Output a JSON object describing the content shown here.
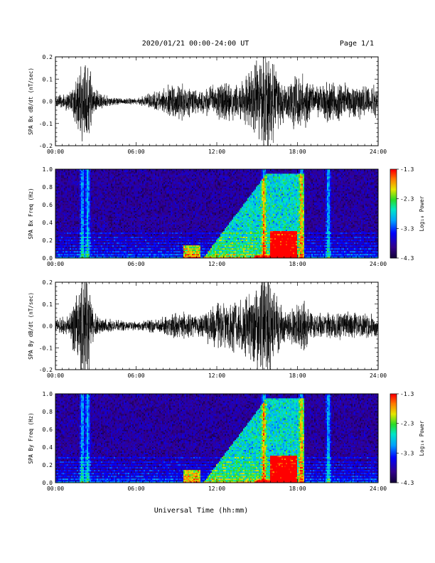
{
  "header": {
    "title": "2020/01/21  00:00-24:00 UT",
    "page": "Page 1/1"
  },
  "xlabel": "Universal Time (hh:mm)",
  "chart_data": [
    {
      "type": "line",
      "ylabel": "SPA Bx dB/dt (nT/sec)",
      "xlim": [
        0,
        24
      ],
      "ylim": [
        -0.2,
        0.2
      ],
      "x_ticks": [
        "00:00",
        "06:00",
        "12:00",
        "18:00",
        "24:00"
      ],
      "y_ticks": [
        "-0.2",
        "-0.1",
        "0.0",
        "0.1",
        "0.2"
      ],
      "y_tick_values": [
        -0.2,
        -0.1,
        0.0,
        0.1,
        0.2
      ],
      "amplitude_envelope": {
        "hours": [
          0,
          1,
          1.7,
          2.0,
          2.4,
          2.8,
          3.5,
          4.5,
          6,
          7.5,
          8.5,
          9.5,
          10.5,
          11.5,
          12.5,
          13.5,
          14.5,
          15.3,
          15.8,
          16.5,
          17.2,
          17.8,
          18.5,
          19.3,
          20,
          21,
          22,
          23,
          24
        ],
        "amplitude": [
          0.03,
          0.05,
          0.15,
          0.22,
          0.25,
          0.07,
          0.035,
          0.02,
          0.015,
          0.05,
          0.08,
          0.09,
          0.06,
          0.08,
          0.1,
          0.1,
          0.14,
          0.26,
          0.3,
          0.15,
          0.08,
          0.16,
          0.14,
          0.07,
          0.1,
          0.1,
          0.09,
          0.08,
          0.08
        ]
      }
    },
    {
      "type": "heatmap",
      "ylabel": "SPA Bx Freq (Hz)",
      "xlim": [
        0,
        24
      ],
      "ylim": [
        0,
        1.0
      ],
      "x_ticks": [
        "00:00",
        "06:00",
        "12:00",
        "18:00",
        "24:00"
      ],
      "y_ticks": [
        "0.0",
        "0.2",
        "0.4",
        "0.6",
        "0.8",
        "1.0"
      ],
      "y_tick_values": [
        0,
        0.2,
        0.4,
        0.6,
        0.8,
        1.0
      ],
      "colorbar": {
        "label": "Log₁₀ Power",
        "ticks": [
          "-1.3",
          "-2.3",
          "-3.3",
          "-4.3"
        ],
        "tick_values": [
          -1.3,
          -2.3,
          -3.3,
          -4.3
        ],
        "range": [
          -4.3,
          -1.3
        ]
      },
      "features": {
        "band_limits_hz": [
          0.22,
          0.3,
          0.6,
          0.95
        ],
        "vertical_streaks_hours": [
          2.0,
          2.4,
          15.5,
          18.3,
          20.3
        ],
        "high_power_regions": [
          {
            "hours": [
              9.5,
              10.8
            ],
            "max_freq_hz": 0.15
          },
          {
            "hours": [
              11,
              18.5
            ],
            "max_freq_hz": 0.95
          },
          {
            "hours": [
              16,
              18
            ],
            "max_freq_hz": 0.3
          }
        ]
      }
    },
    {
      "type": "line",
      "ylabel": "SPA By dB/dt (nT/sec)",
      "xlim": [
        0,
        24
      ],
      "ylim": [
        -0.2,
        0.2
      ],
      "x_ticks": [
        "00:00",
        "06:00",
        "12:00",
        "18:00",
        "24:00"
      ],
      "y_ticks": [
        "-0.2",
        "-0.1",
        "0.0",
        "0.1",
        "0.2"
      ],
      "y_tick_values": [
        -0.2,
        -0.1,
        0.0,
        0.1,
        0.2
      ],
      "amplitude_envelope": {
        "hours": [
          0,
          1,
          1.7,
          2.0,
          2.4,
          2.8,
          3.5,
          4.5,
          6,
          7.5,
          8.5,
          9.5,
          10.5,
          11.5,
          12.5,
          13.5,
          14.5,
          15.3,
          15.8,
          16.5,
          17.2,
          17.8,
          18.5,
          19.3,
          20,
          21,
          22,
          23,
          24
        ],
        "amplitude": [
          0.04,
          0.06,
          0.2,
          0.3,
          0.3,
          0.08,
          0.04,
          0.03,
          0.02,
          0.04,
          0.06,
          0.07,
          0.05,
          0.1,
          0.12,
          0.13,
          0.17,
          0.3,
          0.3,
          0.15,
          0.06,
          0.13,
          0.12,
          0.06,
          0.07,
          0.07,
          0.07,
          0.06,
          0.06
        ]
      }
    },
    {
      "type": "heatmap",
      "ylabel": "SPA By Freq (Hz)",
      "xlim": [
        0,
        24
      ],
      "ylim": [
        0,
        1.0
      ],
      "x_ticks": [
        "00:00",
        "06:00",
        "12:00",
        "18:00",
        "24:00"
      ],
      "y_ticks": [
        "0.0",
        "0.2",
        "0.4",
        "0.6",
        "0.8",
        "1.0"
      ],
      "y_tick_values": [
        0,
        0.2,
        0.4,
        0.6,
        0.8,
        1.0
      ],
      "colorbar": {
        "label": "Log₁₀ Power",
        "ticks": [
          "-1.3",
          "-2.3",
          "-3.3",
          "-4.3"
        ],
        "tick_values": [
          -1.3,
          -2.3,
          -3.3,
          -4.3
        ],
        "range": [
          -4.3,
          -1.3
        ]
      },
      "features": {
        "band_limits_hz": [
          0.22,
          0.3,
          0.6,
          0.95
        ],
        "vertical_streaks_hours": [
          2.0,
          2.4,
          15.5,
          18.3,
          20.3
        ],
        "high_power_regions": [
          {
            "hours": [
              9.5,
              10.8
            ],
            "max_freq_hz": 0.15
          },
          {
            "hours": [
              11,
              18.5
            ],
            "max_freq_hz": 0.95
          },
          {
            "hours": [
              16,
              18
            ],
            "max_freq_hz": 0.3
          }
        ]
      }
    }
  ]
}
